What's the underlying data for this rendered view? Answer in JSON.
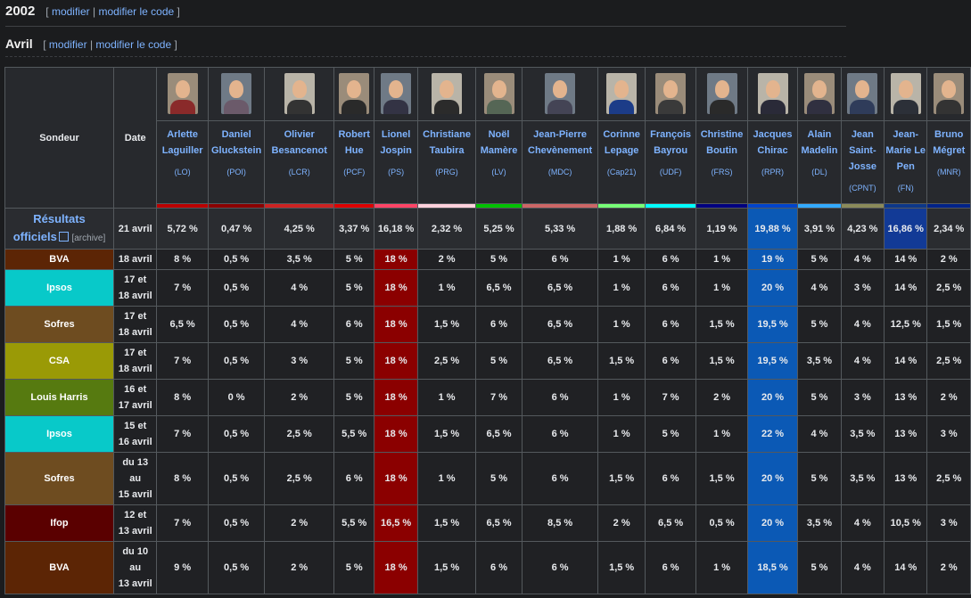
{
  "section": {
    "year": "2002",
    "edit_open": "[",
    "edit_label": "modifier",
    "edit_sep": "|",
    "edit_code_label": "modifier le code",
    "edit_close": "]",
    "sub_title": "Avril"
  },
  "table": {
    "col_sondeur": "Sondeur",
    "col_date": "Date",
    "candidates": [
      {
        "name": "Arlette Laguiller",
        "party": "(LO)",
        "color": "#bb0000",
        "shirt": "#8a2a2a"
      },
      {
        "name": "Daniel Gluckstein",
        "party": "(POI)",
        "color": "#8b0000",
        "shirt": "#6b5a6a"
      },
      {
        "name": "Olivier Besancenot",
        "party": "(LCR)",
        "color": "#cc2222",
        "shirt": "#333333"
      },
      {
        "name": "Robert Hue",
        "party": "(PCF)",
        "color": "#dd0000",
        "shirt": "#2a2a2a"
      },
      {
        "name": "Lionel Jospin",
        "party": "(PS)",
        "color": "#ff4466",
        "shirt": "#333344"
      },
      {
        "name": "Christiane Taubira",
        "party": "(PRG)",
        "color": "#ffd1dc",
        "shirt": "#2b2b2b"
      },
      {
        "name": "Noël Mamère",
        "party": "(LV)",
        "color": "#00c000",
        "shirt": "#556655"
      },
      {
        "name": "Jean-Pierre Chevènement",
        "party": "(MDC)",
        "color": "#cc6666",
        "shirt": "#444455"
      },
      {
        "name": "Corinne Lepage",
        "party": "(Cap21)",
        "color": "#77ff77",
        "shirt": "#1c3c88"
      },
      {
        "name": "François Bayrou",
        "party": "(UDF)",
        "color": "#00ffff",
        "shirt": "#3a3a3a"
      },
      {
        "name": "Christine Boutin",
        "party": "(FRS)",
        "color": "#000080",
        "shirt": "#2a2a2a"
      },
      {
        "name": "Jacques Chirac",
        "party": "(RPR)",
        "color": "#0044cc",
        "shirt": "#2a2a38"
      },
      {
        "name": "Alain Madelin",
        "party": "(DL)",
        "color": "#33aaff",
        "shirt": "#303040"
      },
      {
        "name": "Jean Saint-Josse",
        "party": "(CPNT)",
        "color": "#8b8b5a",
        "shirt": "#2f3c5a"
      },
      {
        "name": "Jean-Marie Le Pen",
        "party": "(FN)",
        "color": "#0d378a",
        "shirt": "#2c3038"
      },
      {
        "name": "Bruno Mégret",
        "party": "(MNR)",
        "color": "#002288",
        "shirt": "#333333"
      }
    ],
    "official": {
      "title_line1": "Résultats",
      "title_line2": "officiels",
      "archive": "[archive]",
      "date": "21 avril",
      "values": [
        "5,72 %",
        "0,47 %",
        "4,25 %",
        "3,37 %",
        "16,18 %",
        "2,32 %",
        "5,25 %",
        "5,33 %",
        "1,88 %",
        "6,84 %",
        "1,19 %",
        "19,88 %",
        "3,91 %",
        "4,23 %",
        "16,86 %",
        "2,34 %"
      ]
    },
    "rows": [
      {
        "pollster": "BVA",
        "color": "#5c2505",
        "date_lines": [
          "18 avril"
        ],
        "values": [
          "8 %",
          "0,5 %",
          "3,5 %",
          "5 %",
          "18 %",
          "2 %",
          "5 %",
          "6 %",
          "1 %",
          "6 %",
          "1 %",
          "19 %",
          "5 %",
          "4 %",
          "14 %",
          "2 %"
        ]
      },
      {
        "pollster": "Ipsos",
        "color": "#08c9c9",
        "date_lines": [
          "17 et",
          "18 avril"
        ],
        "values": [
          "7 %",
          "0,5 %",
          "4 %",
          "5 %",
          "18 %",
          "1 %",
          "6,5 %",
          "6,5 %",
          "1 %",
          "6 %",
          "1 %",
          "20 %",
          "4 %",
          "3 %",
          "14 %",
          "2,5 %"
        ]
      },
      {
        "pollster": "Sofres",
        "color": "#6e4c20",
        "date_lines": [
          "17 et",
          "18 avril"
        ],
        "values": [
          "6,5 %",
          "0,5 %",
          "4 %",
          "6 %",
          "18 %",
          "1,5 %",
          "6 %",
          "6,5 %",
          "1 %",
          "6 %",
          "1,5 %",
          "19,5 %",
          "5 %",
          "4 %",
          "12,5 %",
          "1,5 %"
        ]
      },
      {
        "pollster": "CSA",
        "color": "#9a9a06",
        "date_lines": [
          "17 et",
          "18 avril"
        ],
        "values": [
          "7 %",
          "0,5 %",
          "3 %",
          "5 %",
          "18 %",
          "2,5 %",
          "5 %",
          "6,5 %",
          "1,5 %",
          "6 %",
          "1,5 %",
          "19,5 %",
          "3,5 %",
          "4 %",
          "14 %",
          "2,5 %"
        ]
      },
      {
        "pollster": "Louis Harris",
        "color": "#567a10",
        "date_lines": [
          "16 et",
          "17 avril"
        ],
        "values": [
          "8 %",
          "0 %",
          "2 %",
          "5 %",
          "18 %",
          "1 %",
          "7 %",
          "6 %",
          "1 %",
          "7 %",
          "2 %",
          "20 %",
          "5 %",
          "3 %",
          "13 %",
          "2 %"
        ]
      },
      {
        "pollster": "Ipsos",
        "color": "#08c9c9",
        "date_lines": [
          "15 et",
          "16 avril"
        ],
        "values": [
          "7 %",
          "0,5 %",
          "2,5 %",
          "5,5 %",
          "18 %",
          "1,5 %",
          "6,5 %",
          "6 %",
          "1 %",
          "5 %",
          "1 %",
          "22 %",
          "4 %",
          "3,5 %",
          "13 %",
          "3 %"
        ]
      },
      {
        "pollster": "Sofres",
        "color": "#6e4c20",
        "date_lines": [
          "du 13",
          "au",
          "15 avril"
        ],
        "values": [
          "8 %",
          "0,5 %",
          "2,5 %",
          "6 %",
          "18 %",
          "1 %",
          "5 %",
          "6 %",
          "1,5 %",
          "6 %",
          "1,5 %",
          "20 %",
          "5 %",
          "3,5 %",
          "13 %",
          "2,5 %"
        ]
      },
      {
        "pollster": "Ifop",
        "color": "#5a0000",
        "date_lines": [
          "12 et",
          "13 avril"
        ],
        "values": [
          "7 %",
          "0,5 %",
          "2 %",
          "5,5 %",
          "16,5 %",
          "1,5 %",
          "6,5 %",
          "8,5 %",
          "2 %",
          "6,5 %",
          "0,5 %",
          "20 %",
          "3,5 %",
          "4 %",
          "10,5 %",
          "3 %"
        ]
      },
      {
        "pollster": "BVA",
        "color": "#5c2505",
        "date_lines": [
          "du 10",
          "au",
          "13 avril"
        ],
        "values": [
          "9 %",
          "0,5 %",
          "2 %",
          "5 %",
          "18 %",
          "1,5 %",
          "6 %",
          "6 %",
          "1,5 %",
          "6 %",
          "1 %",
          "18,5 %",
          "5 %",
          "4 %",
          "14 %",
          "2 %"
        ]
      }
    ]
  }
}
